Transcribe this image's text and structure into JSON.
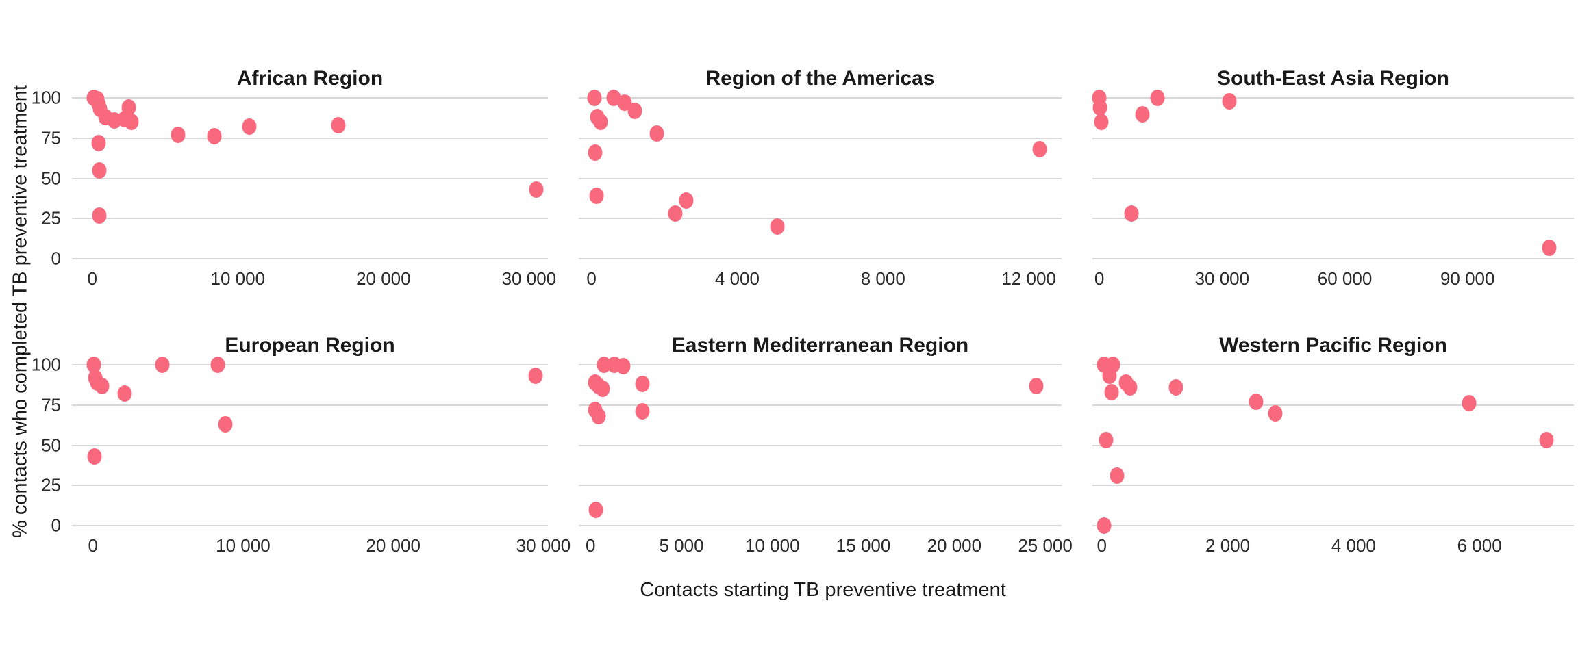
{
  "y_axis_title": "% contacts who completed TB preventive treatment",
  "x_axis_title": "Contacts starting TB preventive treatment",
  "point_color": "#F8697E",
  "gridline_color": "#d8d8d8",
  "y_ticks": [
    {
      "v": 100,
      "label": "100"
    },
    {
      "v": 75,
      "label": "75"
    },
    {
      "v": 50,
      "label": "50"
    },
    {
      "v": 25,
      "label": "25"
    },
    {
      "v": 0,
      "label": "0"
    }
  ],
  "chart_data": [
    {
      "type": "scatter",
      "title": "African Region",
      "xlabel": "Contacts starting TB preventive treatment",
      "ylabel": "% contacts who completed TB preventive treatment",
      "ylim": [
        0,
        100
      ],
      "xlim": [
        -1400,
        31300
      ],
      "show_y_labels": true,
      "x_ticks": [
        {
          "v": 0,
          "label": "0"
        },
        {
          "v": 10000,
          "label": "10 000"
        },
        {
          "v": 20000,
          "label": "20 000"
        },
        {
          "v": 30000,
          "label": "30 000"
        }
      ],
      "points": [
        [
          100,
          100
        ],
        [
          350,
          99
        ],
        [
          450,
          96
        ],
        [
          550,
          93
        ],
        [
          900,
          88
        ],
        [
          1500,
          86
        ],
        [
          2200,
          87
        ],
        [
          2500,
          94
        ],
        [
          2700,
          85
        ],
        [
          450,
          72
        ],
        [
          500,
          55
        ],
        [
          480,
          27
        ],
        [
          5900,
          77
        ],
        [
          8400,
          76
        ],
        [
          10800,
          82
        ],
        [
          16900,
          83
        ],
        [
          30500,
          43
        ]
      ]
    },
    {
      "type": "scatter",
      "title": "Region of the Americas",
      "xlabel": "Contacts starting TB preventive treatment",
      "ylabel": "% contacts who completed TB preventive treatment",
      "ylim": [
        0,
        100
      ],
      "xlim": [
        -350,
        12900
      ],
      "show_y_labels": false,
      "x_ticks": [
        {
          "v": 0,
          "label": "0"
        },
        {
          "v": 4000,
          "label": "4 000"
        },
        {
          "v": 8000,
          "label": "8 000"
        },
        {
          "v": 12000,
          "label": "12 000"
        }
      ],
      "points": [
        [
          80,
          100
        ],
        [
          600,
          100
        ],
        [
          900,
          97
        ],
        [
          1200,
          92
        ],
        [
          1800,
          78
        ],
        [
          150,
          88
        ],
        [
          250,
          85
        ],
        [
          100,
          66
        ],
        [
          130,
          39
        ],
        [
          2600,
          36
        ],
        [
          2300,
          28
        ],
        [
          5100,
          20
        ],
        [
          12300,
          68
        ]
      ]
    },
    {
      "type": "scatter",
      "title": "South-East Asia Region",
      "xlabel": "Contacts starting TB preventive treatment",
      "ylabel": "% contacts who completed TB preventive treatment",
      "ylim": [
        0,
        100
      ],
      "xlim": [
        -1700,
        116000
      ],
      "show_y_labels": false,
      "x_ticks": [
        {
          "v": 0,
          "label": "0"
        },
        {
          "v": 30000,
          "label": "30 000"
        },
        {
          "v": 60000,
          "label": "60 000"
        },
        {
          "v": 90000,
          "label": "90 000"
        }
      ],
      "points": [
        [
          50,
          100
        ],
        [
          200,
          94
        ],
        [
          500,
          85
        ],
        [
          10500,
          90
        ],
        [
          14200,
          100
        ],
        [
          31800,
          98
        ],
        [
          7900,
          28
        ],
        [
          110000,
          7
        ]
      ]
    },
    {
      "type": "scatter",
      "title": "European Region",
      "xlabel": "Contacts starting TB preventive treatment",
      "ylabel": "% contacts who completed TB preventive treatment",
      "ylim": [
        0,
        100
      ],
      "xlim": [
        -1400,
        30300
      ],
      "show_y_labels": true,
      "x_ticks": [
        {
          "v": 0,
          "label": "0"
        },
        {
          "v": 10000,
          "label": "10 000"
        },
        {
          "v": 20000,
          "label": "20 000"
        },
        {
          "v": 30000,
          "label": "30 000"
        }
      ],
      "points": [
        [
          50,
          100
        ],
        [
          150,
          92
        ],
        [
          300,
          89
        ],
        [
          600,
          87
        ],
        [
          2100,
          82
        ],
        [
          4600,
          100
        ],
        [
          8300,
          100
        ],
        [
          8800,
          63
        ],
        [
          100,
          43
        ],
        [
          29500,
          93
        ]
      ]
    },
    {
      "type": "scatter",
      "title": "Eastern Mediterranean Region",
      "xlabel": "Contacts starting TB preventive treatment",
      "ylabel": "% contacts who completed TB preventive treatment",
      "ylim": [
        0,
        100
      ],
      "xlim": [
        -650,
        25900
      ],
      "show_y_labels": false,
      "x_ticks": [
        {
          "v": 0,
          "label": "0"
        },
        {
          "v": 5000,
          "label": "5 000"
        },
        {
          "v": 10000,
          "label": "10 000"
        },
        {
          "v": 15000,
          "label": "15 000"
        },
        {
          "v": 20000,
          "label": "20 000"
        },
        {
          "v": 25000,
          "label": "25 000"
        }
      ],
      "points": [
        [
          750,
          100
        ],
        [
          1300,
          100
        ],
        [
          1800,
          99
        ],
        [
          250,
          89
        ],
        [
          450,
          87
        ],
        [
          650,
          85
        ],
        [
          2850,
          88
        ],
        [
          250,
          72
        ],
        [
          450,
          68
        ],
        [
          2850,
          71
        ],
        [
          300,
          10
        ],
        [
          24500,
          87
        ]
      ]
    },
    {
      "type": "scatter",
      "title": "Western Pacific Region",
      "xlabel": "Contacts starting TB preventive treatment",
      "ylabel": "% contacts who completed TB preventive treatment",
      "ylim": [
        0,
        100
      ],
      "xlim": [
        -150,
        7500
      ],
      "show_y_labels": false,
      "x_ticks": [
        {
          "v": 0,
          "label": "0"
        },
        {
          "v": 2000,
          "label": "2 000"
        },
        {
          "v": 4000,
          "label": "4 000"
        },
        {
          "v": 6000,
          "label": "6 000"
        }
      ],
      "points": [
        [
          30,
          100
        ],
        [
          180,
          100
        ],
        [
          120,
          93
        ],
        [
          150,
          83
        ],
        [
          380,
          89
        ],
        [
          450,
          86
        ],
        [
          1180,
          86
        ],
        [
          2450,
          77
        ],
        [
          2760,
          70
        ],
        [
          5830,
          76
        ],
        [
          7060,
          53
        ],
        [
          70,
          53
        ],
        [
          240,
          31
        ],
        [
          30,
          0
        ]
      ]
    }
  ]
}
